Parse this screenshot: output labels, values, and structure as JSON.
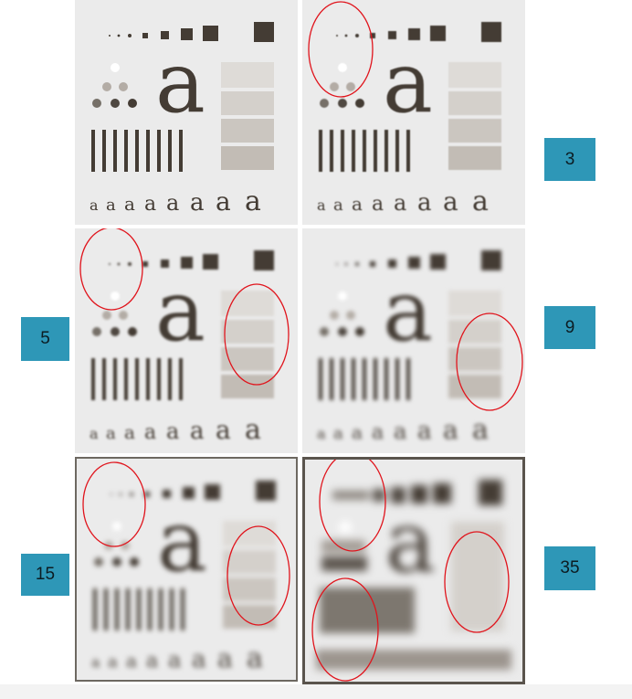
{
  "badges": [
    {
      "id": "3",
      "label": "3"
    },
    {
      "id": "5",
      "label": "5"
    },
    {
      "id": "9",
      "label": "9"
    },
    {
      "id": "15",
      "label": "15"
    },
    {
      "id": "35",
      "label": "35"
    }
  ],
  "pattern": {
    "big_letter": "a",
    "small_letter": "a"
  },
  "colors": {
    "panel_bg": "#ebebeb",
    "shape_dark": "#443c34",
    "badge_bg": "#2e97b7",
    "circle_red": "#e0141c"
  }
}
